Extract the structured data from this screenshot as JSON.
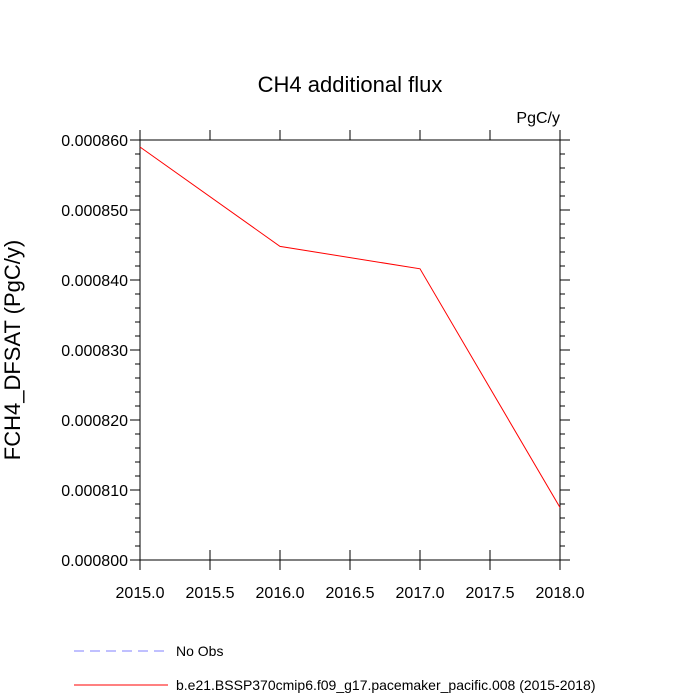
{
  "chart_data": {
    "type": "line",
    "title": "CH4 additional flux",
    "units": "PgC/y",
    "xlabel": "",
    "ylabel": "FCH4_DFSAT  (PgC/y)",
    "xlim": [
      2015.0,
      2018.0
    ],
    "ylim": [
      0.0008,
      0.00086
    ],
    "xticks": [
      2015.0,
      2015.5,
      2016.0,
      2016.5,
      2017.0,
      2017.5,
      2018.0
    ],
    "xtick_labels": [
      "2015.0",
      "2015.5",
      "2016.0",
      "2016.5",
      "2017.0",
      "2017.5",
      "2018.0"
    ],
    "yticks": [
      0.0008,
      0.00081,
      0.00082,
      0.00083,
      0.00084,
      0.00085,
      0.00086
    ],
    "ytick_labels": [
      "0.000800",
      "0.000810",
      "0.000820",
      "0.000830",
      "0.000840",
      "0.000850",
      "0.000860"
    ],
    "grid": false,
    "legend_position": "bottom",
    "series": [
      {
        "name": "b.e21.BSSP370cmip6.f09_g17.pacemaker_pacific.008 (2015-2018)",
        "color": "#ff0000",
        "x": [
          2015.0,
          2016.0,
          2017.0,
          2018.0
        ],
        "y": [
          0.000859,
          0.0008448,
          0.0008416,
          0.0008075
        ]
      }
    ],
    "legend": [
      {
        "label": "No Obs",
        "color": "#8080ff",
        "dashed": true
      },
      {
        "label": "b.e21.BSSP370cmip6.f09_g17.pacemaker_pacific.008 (2015-2018)",
        "color": "#ff0000",
        "dashed": false
      }
    ]
  }
}
